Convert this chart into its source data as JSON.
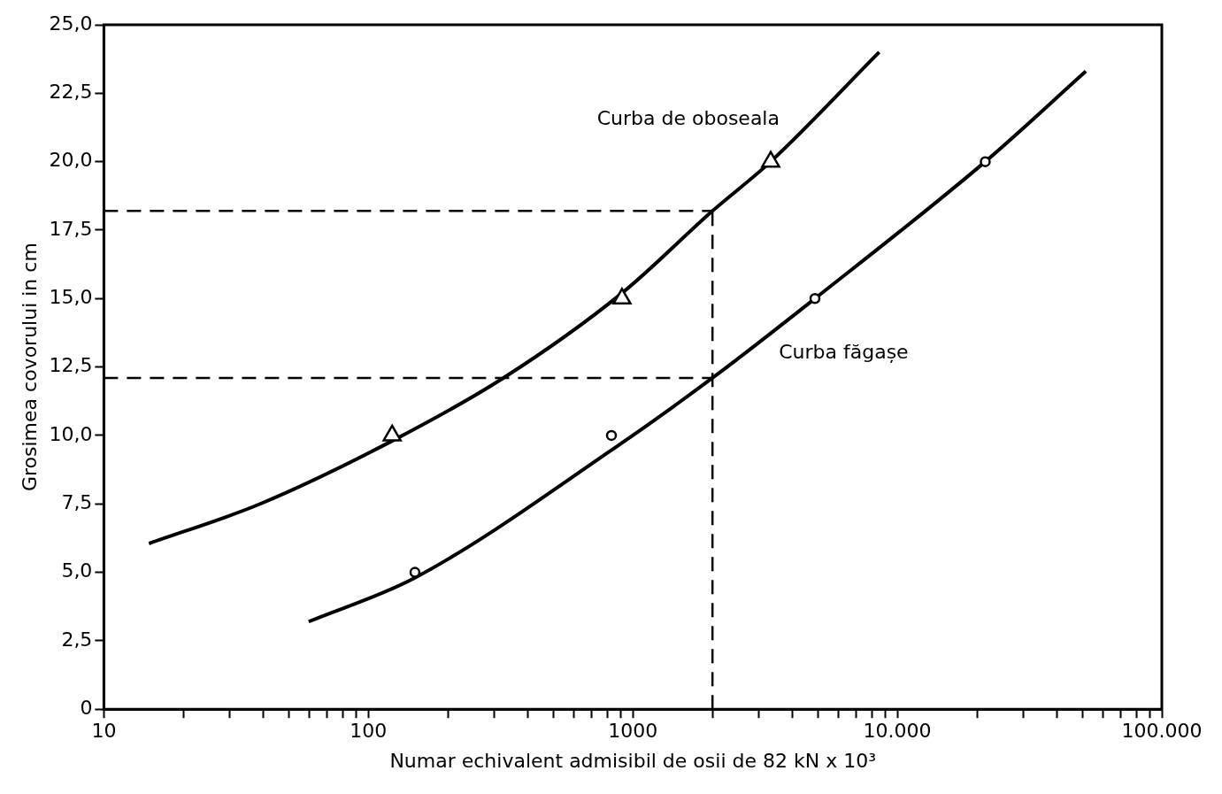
{
  "chart_data": {
    "type": "line",
    "xlabel": "Numar echivalent admisibil de osii de 82 kN x 10³",
    "ylabel": "Grosimea covorului in cm",
    "log": "x",
    "grid": false,
    "legend": false,
    "line_style": "solid",
    "xlim": [
      10,
      100000
    ],
    "ylim": [
      0,
      25
    ],
    "xticks": [
      {
        "value": 10,
        "label": "10"
      },
      {
        "value": 20,
        "label": null
      },
      {
        "value": 30,
        "label": null
      },
      {
        "value": 40,
        "label": null
      },
      {
        "value": 50,
        "label": null
      },
      {
        "value": 60,
        "label": null
      },
      {
        "value": 70,
        "label": null
      },
      {
        "value": 80,
        "label": null
      },
      {
        "value": 90,
        "label": null
      },
      {
        "value": 100,
        "label": "100"
      },
      {
        "value": 200,
        "label": null
      },
      {
        "value": 300,
        "label": null
      },
      {
        "value": 400,
        "label": null
      },
      {
        "value": 500,
        "label": null
      },
      {
        "value": 600,
        "label": null
      },
      {
        "value": 700,
        "label": null
      },
      {
        "value": 800,
        "label": null
      },
      {
        "value": 900,
        "label": null
      },
      {
        "value": 1000,
        "label": "1000"
      },
      {
        "value": 2000,
        "label": null
      },
      {
        "value": 3000,
        "label": null
      },
      {
        "value": 4000,
        "label": null
      },
      {
        "value": 5000,
        "label": null
      },
      {
        "value": 6000,
        "label": null
      },
      {
        "value": 7000,
        "label": null
      },
      {
        "value": 8000,
        "label": null
      },
      {
        "value": 9000,
        "label": null
      },
      {
        "value": 10000,
        "label": "10.000"
      },
      {
        "value": 20000,
        "label": null
      },
      {
        "value": 30000,
        "label": null
      },
      {
        "value": 40000,
        "label": null
      },
      {
        "value": 50000,
        "label": null
      },
      {
        "value": 60000,
        "label": null
      },
      {
        "value": 70000,
        "label": null
      },
      {
        "value": 80000,
        "label": null
      },
      {
        "value": 90000,
        "label": null
      },
      {
        "value": 100000,
        "label": "100.000"
      }
    ],
    "yticks": [
      0,
      {
        "value": 2.5,
        "label": "2,5"
      },
      {
        "value": 5,
        "label": "5,0"
      },
      {
        "value": 7.5,
        "label": "7,5"
      },
      {
        "value": 10,
        "label": "10,0"
      },
      {
        "value": 12.5,
        "label": "12,5"
      },
      {
        "value": 15,
        "label": "15,0"
      },
      {
        "value": 17.5,
        "label": "17,5"
      },
      {
        "value": 20,
        "label": "20,0"
      },
      {
        "value": 22.5,
        "label": "22,5"
      },
      {
        "value": 25,
        "label": "25,0"
      }
    ],
    "series": [
      {
        "name": "Curba de oboseala",
        "color": "#000000",
        "x": [
          14.8,
          39,
          123,
          324,
          910,
          2000,
          3320,
          8540
        ],
        "values": [
          6.05,
          7.5,
          9.8,
          12.1,
          15.2,
          18.2,
          20,
          24
        ]
      },
      {
        "name": "Curba făgașe",
        "color": "#000000",
        "x": [
          59.5,
          150,
          870,
          2000,
          4880,
          21500,
          51600
        ],
        "values": [
          3.2,
          4.8,
          9.6,
          12.1,
          15,
          20,
          23.3
        ]
      },
      {
        "type": "scatter",
        "marker": "triangle",
        "color": "#000000",
        "x": [
          123,
          910,
          3320
        ],
        "values": [
          10,
          15,
          20
        ]
      },
      {
        "type": "scatter",
        "marker": "circle",
        "color": "#000000",
        "x": [
          150,
          830,
          4880,
          21500
        ],
        "values": [
          5,
          10,
          15,
          20
        ]
      }
    ],
    "ref_lines": [
      {
        "axis": "y",
        "value": 18.2,
        "line_style": "dashed"
      },
      {
        "axis": "y",
        "value": 12.1,
        "line_style": "dashed"
      },
      {
        "axis": "x",
        "value": 2000,
        "line_style": "dashed"
      }
    ]
  }
}
